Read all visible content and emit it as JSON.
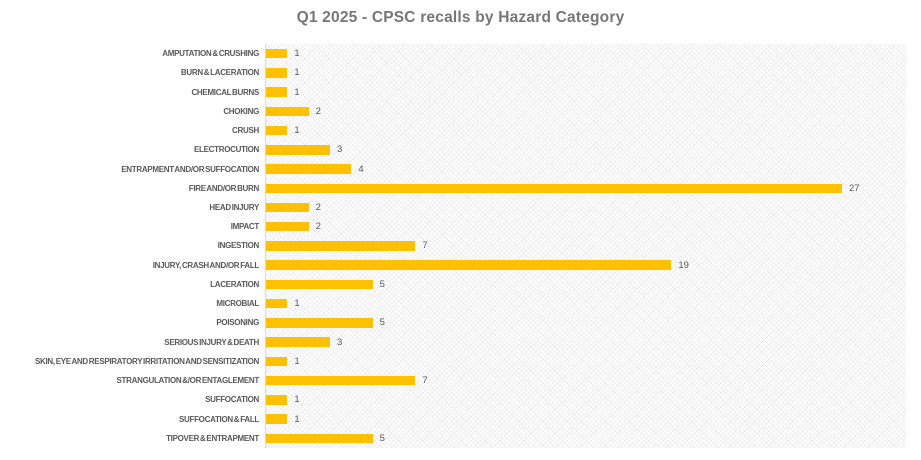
{
  "chart_data": {
    "type": "bar",
    "orientation": "horizontal",
    "title": "Q1 2025 - CPSC recalls by Hazard Category",
    "categories": [
      "AMPUTATION & CRUSHING",
      "BURN & LACERATION",
      "CHEMICAL BURNS",
      "CHOKING",
      "CRUSH",
      "ELECTROCUTION",
      "ENTRAPMENT AND/OR SUFFOCATION",
      "FIRE AND/OR BURN",
      "HEAD INJURY",
      "IMPACT",
      "INGESTION",
      "INJURY, CRASH AND/OR FALL",
      "LACERATION",
      "MICROBIAL",
      "POISONING",
      "SERIOUS INJURY & DEATH",
      "SKIN, EYE AND RESPIRATORY IRRITATION AND SENSITIZATION",
      "STRANGULATION &/OR ENTAGLEMENT",
      "SUFFOCATION",
      "SUFFOCATION & FALL",
      "TIPOVER & ENTRAPMENT"
    ],
    "values": [
      1,
      1,
      1,
      2,
      1,
      3,
      4,
      27,
      2,
      2,
      7,
      19,
      5,
      1,
      5,
      3,
      1,
      7,
      1,
      1,
      5
    ],
    "xlim": [
      0,
      30
    ],
    "data_labels": true,
    "legend": false,
    "grid": false,
    "colors": {
      "bar": "#FFC000",
      "title": "#767676",
      "category_label": "#595959",
      "data_label": "#595959",
      "axis_line": "#D9D9D9"
    }
  }
}
